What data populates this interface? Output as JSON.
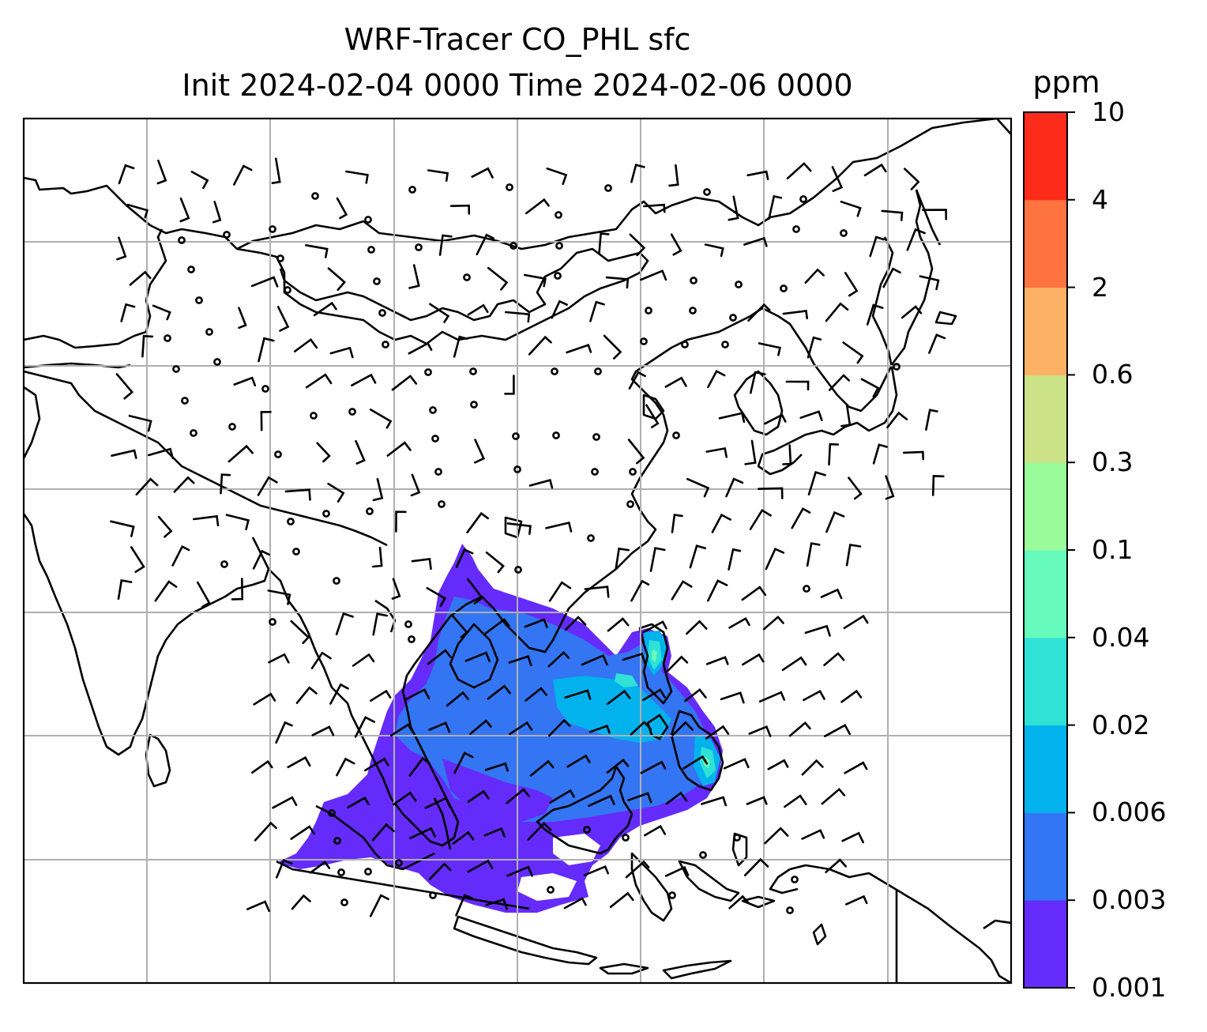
{
  "title": {
    "line1": "WRF-Tracer CO_PHL sfc",
    "line2": "Init 2024-02-04 0000 Time 2024-02-06 0000"
  },
  "colorbar": {
    "unit": "ppm",
    "levels": [
      "0.001",
      "0.003",
      "0.006",
      "0.02",
      "0.04",
      "0.1",
      "0.3",
      "0.6",
      "2",
      "4",
      "10"
    ],
    "colors": [
      "#652bfb",
      "#3375f2",
      "#02b2ed",
      "#30e2d5",
      "#66fbbc",
      "#99fb99",
      "#cbe286",
      "#fdb164",
      "#fe7340",
      "#fc2b1a"
    ]
  },
  "map": {
    "content": "Surface tracer concentration over East and Southeast Asia with wind barbs and coastlines",
    "grid": true
  }
}
